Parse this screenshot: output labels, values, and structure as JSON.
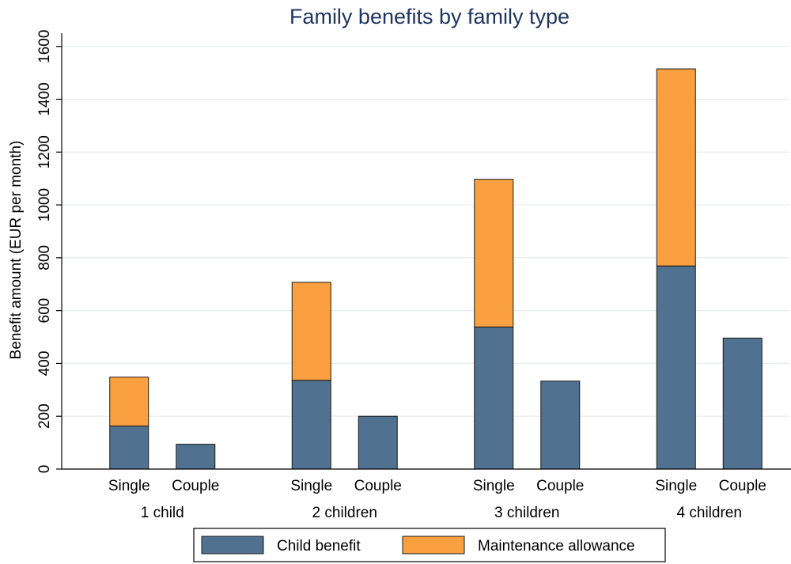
{
  "chart_data": {
    "type": "bar",
    "stacked": true,
    "title": "Family benefits by family type",
    "ylabel": "Benefit amount (EUR per month)",
    "xlabel": "",
    "ylim": [
      0,
      1650
    ],
    "yticks": [
      0,
      200,
      400,
      600,
      800,
      1000,
      1200,
      1400,
      1600
    ],
    "grid": true,
    "groups": [
      "1 child",
      "2 children",
      "3 children",
      "4 children"
    ],
    "subcategories": [
      "Single",
      "Couple"
    ],
    "series": [
      {
        "name": "Child benefit",
        "color": "#50718f",
        "values": [
          [
            163,
            94
          ],
          [
            336,
            200
          ],
          [
            538,
            333
          ],
          [
            769,
            496
          ]
        ]
      },
      {
        "name": "Maintenance allowance",
        "color": "#fba040",
        "values": [
          [
            185,
            0
          ],
          [
            371,
            0
          ],
          [
            559,
            0
          ],
          [
            746,
            0
          ]
        ]
      }
    ],
    "legend": {
      "position": "bottom",
      "entries": [
        "Child benefit",
        "Maintenance allowance"
      ]
    }
  }
}
